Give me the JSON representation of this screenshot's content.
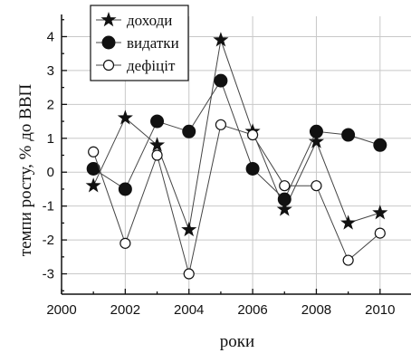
{
  "chart_data": {
    "type": "line",
    "xlabel": "роки",
    "ylabel": "темпи росту, % до ВВП",
    "xlim": [
      2000,
      2011
    ],
    "ylim": [
      -3.6,
      4.6
    ],
    "xticks": [
      2000,
      2002,
      2004,
      2006,
      2008,
      2010
    ],
    "yticks": [
      -3,
      -2,
      -1,
      0,
      1,
      2,
      3,
      4
    ],
    "grid": true,
    "legend_position": "top-left",
    "x": [
      2001,
      2002,
      2003,
      2004,
      2005,
      2006,
      2007,
      2008,
      2009,
      2010
    ],
    "series": [
      {
        "name": "доходи",
        "marker": "star",
        "values": [
          -0.4,
          1.6,
          0.8,
          -1.7,
          3.9,
          1.2,
          -1.1,
          0.9,
          -1.5,
          -1.2
        ]
      },
      {
        "name": "видатки",
        "marker": "filled-circle",
        "values": [
          0.1,
          -0.5,
          1.5,
          1.2,
          2.7,
          0.1,
          -0.8,
          1.2,
          1.1,
          0.8
        ]
      },
      {
        "name": "дефіціт",
        "marker": "open-circle",
        "values": [
          0.6,
          -2.1,
          0.5,
          -3.0,
          1.4,
          1.1,
          -0.4,
          -0.4,
          -2.6,
          -1.8
        ]
      }
    ]
  }
}
